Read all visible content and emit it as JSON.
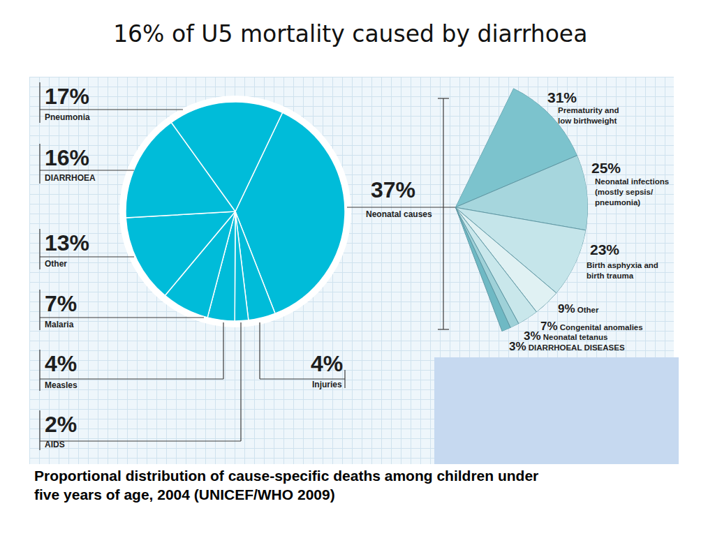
{
  "chart_data": [
    {
      "type": "pie",
      "title": "16% of U5 mortality caused by diarrhoea",
      "caption": "Proportional distribution of cause-specific deaths among children under five years of age, 2004 (UNICEF/WHO 2009)",
      "categories": [
        "Neonatal causes",
        "Injuries",
        "AIDS",
        "Measles",
        "Malaria",
        "Other",
        "DIARRHOEA",
        "Pneumonia"
      ],
      "values": [
        37,
        4,
        2,
        4,
        7,
        13,
        16,
        17
      ],
      "value_labels": [
        "37%",
        "4%",
        "2%",
        "4%",
        "7%",
        "13%",
        "16%",
        "17%"
      ],
      "color": "#00bcd9",
      "data_labels": true
    },
    {
      "type": "pie",
      "categories": [
        "Prematurity and low birthweight",
        "Neonatal infections (mostly sepsis/ pneumonia)",
        "Birth asphyxia and birth trauma",
        "Other",
        "Congenital anomalies",
        "Neonatal tetanus",
        "DIARRHOEAL DISEASES"
      ],
      "values": [
        31,
        25,
        23,
        9,
        7,
        3,
        3
      ],
      "value_labels": [
        "31%",
        "25%",
        "23%",
        "9%",
        "7%",
        "3%",
        "3%"
      ],
      "colors": [
        "#7cc3cd",
        "#a6d6dd",
        "#c5e5ea",
        "#e0f1f3",
        "#c9e7eb",
        "#9fd1d8",
        "#6fb9c4"
      ],
      "data_labels": true
    }
  ]
}
